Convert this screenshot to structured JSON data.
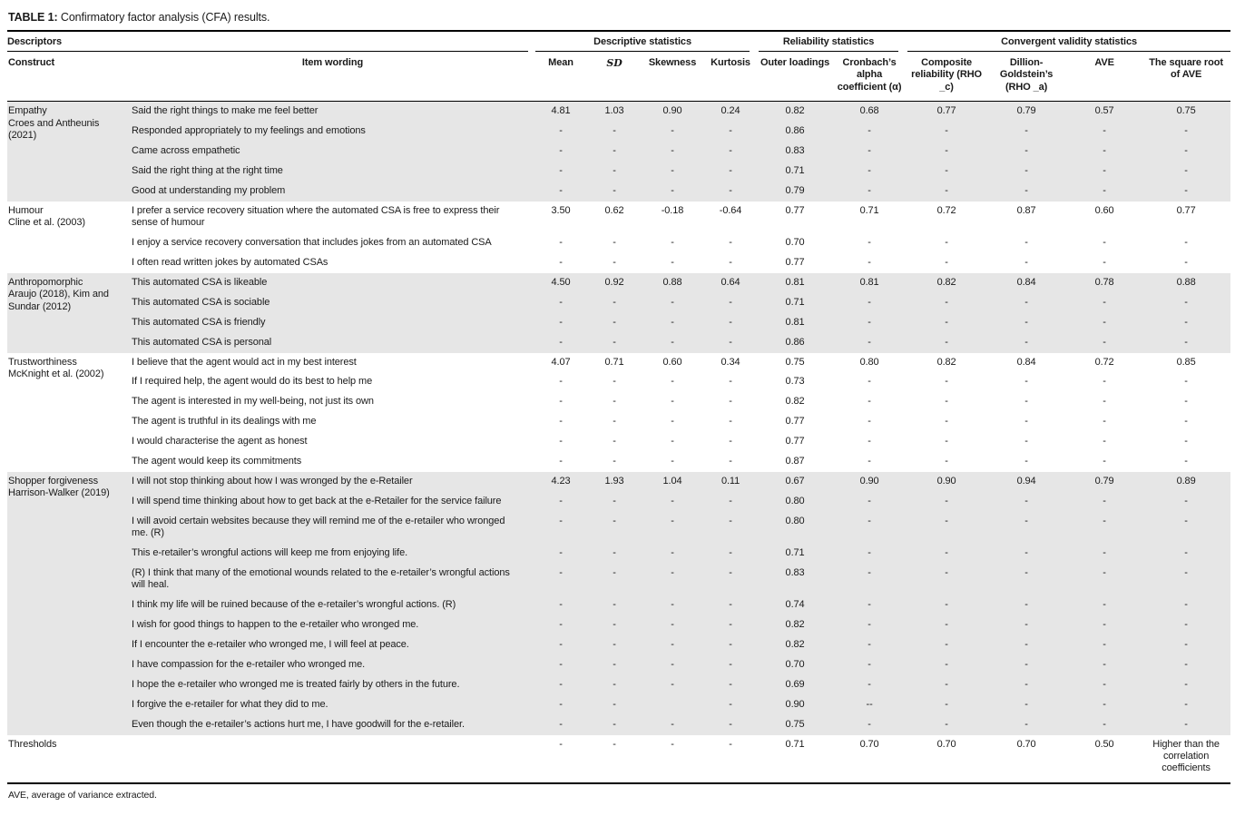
{
  "title": {
    "label": "TABLE 1:",
    "text": " Confirmatory factor analysis (CFA) results."
  },
  "footnote": "AVE, average of variance extracted.",
  "header": {
    "descriptors": "Descriptors",
    "groups": [
      {
        "label": "Descriptive statistics"
      },
      {
        "label": "Reliability statistics"
      },
      {
        "label": "Convergent validity statistics"
      }
    ],
    "columns": [
      "Construct",
      "Item wording",
      "Mean",
      "SD",
      "Skewness",
      "Kurtosis",
      "Outer loadings",
      "Cronbach’s alpha coefficient (α)",
      "Composite reliability (RHO _c)",
      "Dillion-Goldstein’s (RHO _a)",
      "AVE",
      "The square root of AVE"
    ]
  },
  "sections": [
    {
      "construct": "Empathy",
      "citation": "Croes and Antheunis (2021)",
      "shaded": true,
      "rows": [
        {
          "item": "Said the right things to make me feel better",
          "values": [
            "4.81",
            "1.03",
            "0.90",
            "0.24",
            "0.82",
            "0.68",
            "0.77",
            "0.79",
            "0.57",
            "0.75"
          ]
        },
        {
          "item": "Responded appropriately to my feelings and emotions",
          "values": [
            "-",
            "-",
            "-",
            "-",
            "0.86",
            "-",
            "-",
            "-",
            "-",
            "-"
          ]
        },
        {
          "item": "Came across empathetic",
          "values": [
            "-",
            "-",
            "-",
            "-",
            "0.83",
            "-",
            "-",
            "-",
            "-",
            "-"
          ]
        },
        {
          "item": "Said the right thing at the right time",
          "values": [
            "-",
            "-",
            "-",
            "-",
            "0.71",
            "-",
            "-",
            "-",
            "-",
            "-"
          ]
        },
        {
          "item": "Good at understanding my problem",
          "values": [
            "-",
            "-",
            "-",
            "-",
            "0.79",
            "-",
            "-",
            "-",
            "-",
            "-"
          ]
        }
      ]
    },
    {
      "construct": "Humour",
      "citation": "Cline et al. (2003)",
      "shaded": false,
      "rows": [
        {
          "item": "I prefer a service recovery situation where the automated CSA is free to express their sense of humour",
          "values": [
            "3.50",
            "0.62",
            "-0.18",
            "-0.64",
            "0.77",
            "0.71",
            "0.72",
            "0.87",
            "0.60",
            "0.77"
          ]
        },
        {
          "item": "I enjoy a service recovery conversation that includes jokes from an automated CSA",
          "values": [
            "-",
            "-",
            "-",
            "-",
            "0.70",
            "-",
            "-",
            "-",
            "-",
            "-"
          ]
        },
        {
          "item": "I often read written jokes by automated CSAs",
          "values": [
            "-",
            "-",
            "-",
            "-",
            "0.77",
            "-",
            "-",
            "-",
            "-",
            "-"
          ]
        }
      ]
    },
    {
      "construct": "Anthropomorphic",
      "citation": "Araujo (2018), Kim and Sundar (2012)",
      "shaded": true,
      "rows": [
        {
          "item": "This automated CSA is likeable",
          "values": [
            "4.50",
            "0.92",
            "0.88",
            "0.64",
            "0.81",
            "0.81",
            "0.82",
            "0.84",
            "0.78",
            "0.88"
          ]
        },
        {
          "item": "This automated CSA is sociable",
          "values": [
            "-",
            "-",
            "-",
            "-",
            "0.71",
            "-",
            "-",
            "-",
            "-",
            "-"
          ]
        },
        {
          "item": "This automated CSA is friendly",
          "values": [
            "-",
            "-",
            "-",
            "-",
            "0.81",
            "-",
            "-",
            "-",
            "-",
            "-"
          ]
        },
        {
          "item": "This automated CSA is personal",
          "values": [
            "-",
            "-",
            "-",
            "-",
            "0.86",
            "-",
            "-",
            "-",
            "-",
            "-"
          ]
        }
      ]
    },
    {
      "construct": "Trustworthiness",
      "citation": "McKnight et al. (2002)",
      "shaded": false,
      "rows": [
        {
          "item": "I believe that the agent would act in my best interest",
          "values": [
            "4.07",
            "0.71",
            "0.60",
            "0.34",
            "0.75",
            "0.80",
            "0.82",
            "0.84",
            "0.72",
            "0.85"
          ]
        },
        {
          "item": "If I required help, the agent would do its best to help me",
          "values": [
            "-",
            "-",
            "-",
            "-",
            "0.73",
            "-",
            "-",
            "-",
            "-",
            "-"
          ]
        },
        {
          "item": "The agent is interested in my well-being, not just its own",
          "values": [
            "-",
            "-",
            "-",
            "-",
            "0.82",
            "-",
            "-",
            "-",
            "-",
            "-"
          ]
        },
        {
          "item": "The agent is truthful in its dealings with me",
          "values": [
            "-",
            "-",
            "-",
            "-",
            "0.77",
            "-",
            "-",
            "-",
            "-",
            "-"
          ]
        },
        {
          "item": "I would characterise the agent as honest",
          "values": [
            "-",
            "-",
            "-",
            "-",
            "0.77",
            "-",
            "-",
            "-",
            "-",
            "-"
          ]
        },
        {
          "item": "The agent would keep its commitments",
          "values": [
            "-",
            "-",
            "-",
            "-",
            "0.87",
            "-",
            "-",
            "-",
            "-",
            "-"
          ]
        }
      ]
    },
    {
      "construct": "Shopper forgiveness",
      "citation": "Harrison-Walker (2019)",
      "shaded": true,
      "rows": [
        {
          "item": "I will not stop thinking about how I was wronged by the e-Retailer",
          "values": [
            "4.23",
            "1.93",
            "1.04",
            "0.11",
            "0.67",
            "0.90",
            "0.90",
            "0.94",
            "0.79",
            "0.89"
          ]
        },
        {
          "item": "I will spend time thinking about how to get back at the e-Retailer for the service failure",
          "values": [
            "-",
            "-",
            "-",
            "-",
            "0.80",
            "-",
            "-",
            "-",
            "-",
            "-"
          ]
        },
        {
          "item": "I will avoid certain websites because they will remind me of the e-retailer who wronged me. (R)",
          "values": [
            "-",
            "-",
            "-",
            "-",
            "0.80",
            "-",
            "-",
            "-",
            "-",
            "-"
          ]
        },
        {
          "item": "This e-retailer’s wrongful actions will keep me from enjoying life.",
          "values": [
            "-",
            "-",
            "-",
            "-",
            "0.71",
            "-",
            "-",
            "-",
            "-",
            "-"
          ]
        },
        {
          "item": "(R) I think that many of the emotional wounds related to the e-retailer’s wrongful actions will heal.",
          "values": [
            "-",
            "-",
            "-",
            "-",
            "0.83",
            "-",
            "-",
            "-",
            "-",
            "-"
          ]
        },
        {
          "item": "I think my life will be ruined because of the e-retailer’s wrongful actions. (R)",
          "values": [
            "-",
            "-",
            "-",
            "-",
            "0.74",
            "-",
            "-",
            "-",
            "-",
            "-"
          ]
        },
        {
          "item": "I wish for good things to happen to the e-retailer who wronged me.",
          "values": [
            "-",
            "-",
            "-",
            "-",
            "0.82",
            "-",
            "-",
            "-",
            "-",
            "-"
          ]
        },
        {
          "item": "If I encounter the e-retailer who wronged me, I will feel at peace.",
          "values": [
            "-",
            "-",
            "-",
            "-",
            "0.82",
            "-",
            "-",
            "-",
            "-",
            "-"
          ]
        },
        {
          "item": "I have compassion for the e-retailer who wronged me.",
          "values": [
            "-",
            "-",
            "-",
            "-",
            "0.70",
            "-",
            "-",
            "-",
            "-",
            "-"
          ]
        },
        {
          "item": "I hope the e-retailer who wronged me is treated fairly by others in the future.",
          "values": [
            "-",
            "-",
            "-",
            "-",
            "0.69",
            "-",
            "-",
            "-",
            "-",
            "-"
          ]
        },
        {
          "item": "I forgive the e-retailer for what they did to me.",
          "values": [
            "-",
            "-",
            "",
            "-",
            "0.90",
            "--",
            "-",
            "-",
            "-",
            "-"
          ]
        },
        {
          "item": "Even though the e-retailer’s actions hurt me, I have goodwill for the e-retailer.",
          "values": [
            "-",
            "-",
            "-",
            "-",
            "0.75",
            "-",
            "-",
            "-",
            "-",
            "-"
          ]
        }
      ]
    },
    {
      "construct": "Thresholds",
      "citation": "",
      "shaded": false,
      "thresholds": true,
      "rows": [
        {
          "item": "",
          "values": [
            "-",
            "-",
            "-",
            "-",
            "0.71",
            "0.70",
            "0.70",
            "0.70",
            "0.50",
            "Higher than the correlation coefficients"
          ]
        }
      ]
    }
  ]
}
